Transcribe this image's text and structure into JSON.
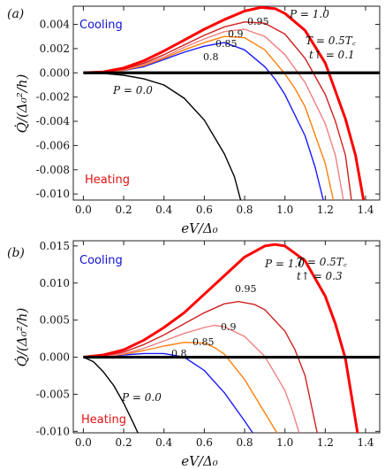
{
  "chart_data": [
    {
      "type": "line",
      "panel_label": "(a)",
      "xlabel": "eV/Δ₀",
      "ylabel": "Q̇/(Δ₀²/h)",
      "xlim": [
        -0.05,
        1.47
      ],
      "ylim": [
        -0.0105,
        0.0055
      ],
      "xticks": [
        "0.0",
        "0.2",
        "0.4",
        "0.6",
        "0.8",
        "1.0",
        "1.2",
        "1.4"
      ],
      "yticks": [
        "0.004",
        "0.002",
        "0.000",
        "-0.002",
        "-0.004",
        "-0.006",
        "-0.008",
        "-0.010"
      ],
      "region_labels": {
        "cooling": "Cooling",
        "heating": "Heating"
      },
      "annotations": [
        "T = 0.5T꜀",
        "t↑ = 0.1"
      ],
      "series": [
        {
          "name": "P = 0.0",
          "label": "P = 0.0",
          "color": "#000000",
          "x": [
            0,
            0.1,
            0.2,
            0.3,
            0.4,
            0.5,
            0.6,
            0.7,
            0.75,
            0.78
          ],
          "y": [
            0,
            -5e-05,
            -0.0002,
            -0.0005,
            -0.001,
            -0.0021,
            -0.0039,
            -0.0067,
            -0.0086,
            -0.0105
          ]
        },
        {
          "name": "P = 0.8",
          "label": "0.8",
          "color": "#1a1aff",
          "x": [
            0,
            0.1,
            0.2,
            0.3,
            0.4,
            0.5,
            0.6,
            0.7,
            0.8,
            0.9,
            0.95,
            1.0,
            1.1,
            1.15,
            1.19
          ],
          "y": [
            0,
            5e-05,
            0.0002,
            0.0005,
            0.0011,
            0.0017,
            0.0022,
            0.0025,
            0.0019,
            0.0005,
            -0.0005,
            -0.0018,
            -0.0052,
            -0.0078,
            -0.0105
          ]
        },
        {
          "name": "P = 0.85",
          "label": "0.85",
          "color": "#ff7f0e",
          "x": [
            0,
            0.1,
            0.2,
            0.3,
            0.4,
            0.5,
            0.6,
            0.7,
            0.8,
            0.9,
            1.0,
            1.05,
            1.1,
            1.2,
            1.24
          ],
          "y": [
            0,
            5e-05,
            0.0002,
            0.0006,
            0.0012,
            0.0019,
            0.0025,
            0.003,
            0.0029,
            0.0019,
            -0.0001,
            -0.0013,
            -0.0028,
            -0.0075,
            -0.0105
          ]
        },
        {
          "name": "P = 0.9",
          "label": "0.9",
          "color": "#f08080",
          "x": [
            0,
            0.1,
            0.2,
            0.3,
            0.4,
            0.5,
            0.6,
            0.7,
            0.8,
            0.9,
            1.0,
            1.1,
            1.2,
            1.25,
            1.29
          ],
          "y": [
            0,
            6e-05,
            0.00025,
            0.0007,
            0.0013,
            0.0021,
            0.0028,
            0.0034,
            0.0036,
            0.003,
            0.0015,
            -0.0008,
            -0.0042,
            -0.0068,
            -0.0105
          ]
        },
        {
          "name": "P = 0.95",
          "label": "0.95",
          "color": "#d02020",
          "x": [
            0,
            0.1,
            0.2,
            0.3,
            0.4,
            0.5,
            0.6,
            0.7,
            0.8,
            0.9,
            1.0,
            1.1,
            1.2,
            1.25,
            1.3,
            1.33
          ],
          "y": [
            0,
            6e-05,
            0.0003,
            0.0008,
            0.0015,
            0.0023,
            0.0031,
            0.0038,
            0.0042,
            0.0041,
            0.0032,
            0.0012,
            -0.0018,
            -0.004,
            -0.0068,
            -0.0105
          ]
        },
        {
          "name": "P = 1.0",
          "label": "P = 1.0",
          "color": "#ff0000",
          "x": [
            0,
            0.1,
            0.2,
            0.3,
            0.4,
            0.5,
            0.6,
            0.7,
            0.8,
            0.88,
            0.95,
            1.0,
            1.1,
            1.2,
            1.3,
            1.35,
            1.39
          ],
          "y": [
            0,
            8e-05,
            0.0004,
            0.001,
            0.0018,
            0.0027,
            0.0036,
            0.0044,
            0.0051,
            0.0054,
            0.0053,
            0.0049,
            0.0035,
            0.0008,
            -0.0038,
            -0.0068,
            -0.0105
          ]
        }
      ]
    },
    {
      "type": "line",
      "panel_label": "(b)",
      "xlabel": "eV/Δ₀",
      "ylabel": "Q̇/(Δ₀²/h)",
      "xlim": [
        -0.05,
        1.47
      ],
      "ylim": [
        -0.0102,
        0.0157
      ],
      "xticks": [
        "0.0",
        "0.2",
        "0.4",
        "0.6",
        "0.8",
        "1.0",
        "1.2",
        "1.4"
      ],
      "yticks": [
        "0.015",
        "0.010",
        "0.005",
        "0.000",
        "-0.005",
        "-0.010"
      ],
      "region_labels": {
        "cooling": "Cooling",
        "heating": "Heating"
      },
      "annotations": [
        "T = 0.5T꜀",
        "t↑ = 0.3"
      ],
      "series": [
        {
          "name": "P = 0.0",
          "label": "P = 0.0",
          "color": "#000000",
          "x": [
            0,
            0.05,
            0.1,
            0.15,
            0.2,
            0.25,
            0.27
          ],
          "y": [
            0,
            -0.0006,
            -0.002,
            -0.0038,
            -0.0062,
            -0.009,
            -0.0102
          ]
        },
        {
          "name": "P = 0.8",
          "label": "0.8",
          "color": "#1a1aff",
          "x": [
            0,
            0.1,
            0.2,
            0.3,
            0.4,
            0.5,
            0.6,
            0.7,
            0.8,
            0.84
          ],
          "y": [
            0,
            0.0001,
            0.0003,
            0.0005,
            0.0005,
            0.0,
            -0.0018,
            -0.0048,
            -0.0086,
            -0.0102
          ]
        },
        {
          "name": "P = 0.85",
          "label": "0.85",
          "color": "#ff7f0e",
          "x": [
            0,
            0.1,
            0.2,
            0.3,
            0.4,
            0.5,
            0.6,
            0.65,
            0.7,
            0.8,
            0.9,
            0.96
          ],
          "y": [
            0,
            0.0001,
            0.0004,
            0.0009,
            0.0015,
            0.002,
            0.0019,
            0.0013,
            0.0004,
            -0.003,
            -0.0075,
            -0.0102
          ]
        },
        {
          "name": "P = 0.9",
          "label": "0.9",
          "color": "#f08080",
          "x": [
            0,
            0.1,
            0.2,
            0.3,
            0.4,
            0.5,
            0.6,
            0.65,
            0.7,
            0.8,
            0.9,
            1.0,
            1.04,
            1.07
          ],
          "y": [
            0,
            0.0001,
            0.0005,
            0.0012,
            0.0022,
            0.0032,
            0.004,
            0.0043,
            0.0041,
            0.0028,
            0.0001,
            -0.0045,
            -0.0075,
            -0.0102
          ]
        },
        {
          "name": "P = 0.95",
          "label": "0.95",
          "color": "#d02020",
          "x": [
            0,
            0.1,
            0.2,
            0.3,
            0.4,
            0.5,
            0.6,
            0.7,
            0.77,
            0.85,
            0.9,
            1.0,
            1.05,
            1.1,
            1.16
          ],
          "y": [
            0,
            0.0002,
            0.0007,
            0.0017,
            0.003,
            0.0045,
            0.006,
            0.0072,
            0.0075,
            0.0071,
            0.0064,
            0.0035,
            0.001,
            -0.0025,
            -0.0102
          ]
        },
        {
          "name": "P = 1.0",
          "label": "P = 1.0",
          "color": "#ff0000",
          "x": [
            0,
            0.1,
            0.2,
            0.3,
            0.4,
            0.5,
            0.6,
            0.7,
            0.8,
            0.9,
            0.95,
            1.0,
            1.1,
            1.2,
            1.25,
            1.3,
            1.36
          ],
          "y": [
            0,
            0.0003,
            0.001,
            0.0023,
            0.004,
            0.006,
            0.0085,
            0.011,
            0.0135,
            0.015,
            0.0152,
            0.015,
            0.013,
            0.0082,
            0.0045,
            -0.0002,
            -0.0102
          ]
        }
      ]
    }
  ]
}
